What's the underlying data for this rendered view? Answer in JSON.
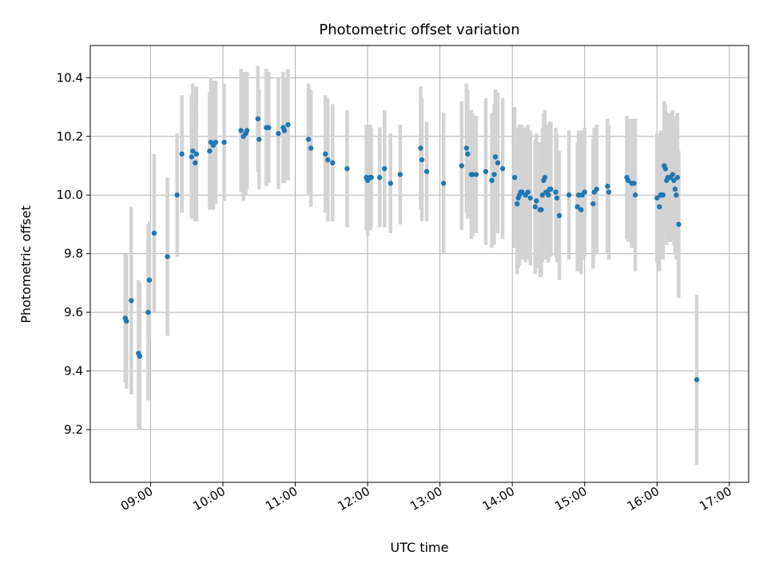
{
  "chart_data": {
    "type": "scatter",
    "title": "Photometric offset variation",
    "xlabel": "UTC time",
    "ylabel": "Photometric offset",
    "xlim": [
      "08:10",
      "17:16"
    ],
    "ylim": [
      9.02,
      10.51
    ],
    "grid": true,
    "x_ticks": [
      "09:00",
      "10:00",
      "11:00",
      "12:00",
      "13:00",
      "14:00",
      "15:00",
      "16:00",
      "17:00"
    ],
    "y_ticks": [
      9.2,
      9.4,
      9.6,
      9.8,
      10.0,
      10.2,
      10.4
    ],
    "y_tick_labels": [
      "9.2",
      "9.4",
      "9.6",
      "9.8",
      "10.0",
      "10.2",
      "10.4"
    ],
    "marker_color": "#1f77b4",
    "errorbar_color": "#d3d3d3",
    "series": [
      {
        "name": "photometric offset",
        "points": [
          {
            "t": "08:39",
            "y": 9.58,
            "err": 0.22
          },
          {
            "t": "08:40",
            "y": 9.57,
            "err": 0.23
          },
          {
            "t": "08:44",
            "y": 9.64,
            "err": 0.32
          },
          {
            "t": "08:50",
            "y": 9.46,
            "err": 0.25
          },
          {
            "t": "08:51",
            "y": 9.45,
            "err": 0.25
          },
          {
            "t": "08:58",
            "y": 9.6,
            "err": 0.3
          },
          {
            "t": "08:59",
            "y": 9.71,
            "err": 0.2
          },
          {
            "t": "09:03",
            "y": 9.87,
            "err": 0.27
          },
          {
            "t": "09:14",
            "y": 9.79,
            "err": 0.27
          },
          {
            "t": "09:22",
            "y": 10.0,
            "err": 0.21
          },
          {
            "t": "09:26",
            "y": 10.14,
            "err": 0.2
          },
          {
            "t": "09:34",
            "y": 10.13,
            "err": 0.21
          },
          {
            "t": "09:35",
            "y": 10.15,
            "err": 0.23
          },
          {
            "t": "09:37",
            "y": 10.11,
            "err": 0.2
          },
          {
            "t": "09:38",
            "y": 10.14,
            "err": 0.23
          },
          {
            "t": "09:49",
            "y": 10.15,
            "err": 0.2
          },
          {
            "t": "09:50",
            "y": 10.18,
            "err": 0.22
          },
          {
            "t": "09:52",
            "y": 10.17,
            "err": 0.22
          },
          {
            "t": "09:54",
            "y": 10.18,
            "err": 0.21
          },
          {
            "t": "10:01",
            "y": 10.18,
            "err": 0.2
          },
          {
            "t": "10:15",
            "y": 10.22,
            "err": 0.21
          },
          {
            "t": "10:17",
            "y": 10.2,
            "err": 0.22
          },
          {
            "t": "10:19",
            "y": 10.21,
            "err": 0.21
          },
          {
            "t": "10:20",
            "y": 10.22,
            "err": 0.2
          },
          {
            "t": "10:29",
            "y": 10.26,
            "err": 0.18
          },
          {
            "t": "10:30",
            "y": 10.19,
            "err": 0.17
          },
          {
            "t": "10:36",
            "y": 10.23,
            "err": 0.2
          },
          {
            "t": "10:38",
            "y": 10.23,
            "err": 0.19
          },
          {
            "t": "10:46",
            "y": 10.21,
            "err": 0.19
          },
          {
            "t": "10:50",
            "y": 10.23,
            "err": 0.19
          },
          {
            "t": "10:51",
            "y": 10.22,
            "err": 0.18
          },
          {
            "t": "10:54",
            "y": 10.24,
            "err": 0.19
          },
          {
            "t": "11:11",
            "y": 10.19,
            "err": 0.19
          },
          {
            "t": "11:13",
            "y": 10.16,
            "err": 0.2
          },
          {
            "t": "11:25",
            "y": 10.14,
            "err": 0.2
          },
          {
            "t": "11:27",
            "y": 10.12,
            "err": 0.21
          },
          {
            "t": "11:31",
            "y": 10.11,
            "err": 0.2
          },
          {
            "t": "11:43",
            "y": 10.09,
            "err": 0.2
          },
          {
            "t": "11:59",
            "y": 10.06,
            "err": 0.18
          },
          {
            "t": "12:00",
            "y": 10.05,
            "err": 0.19
          },
          {
            "t": "12:02",
            "y": 10.06,
            "err": 0.18
          },
          {
            "t": "12:03",
            "y": 10.06,
            "err": 0.17
          },
          {
            "t": "12:10",
            "y": 10.06,
            "err": 0.17
          },
          {
            "t": "12:14",
            "y": 10.09,
            "err": 0.2
          },
          {
            "t": "12:19",
            "y": 10.04,
            "err": 0.17
          },
          {
            "t": "12:27",
            "y": 10.07,
            "err": 0.17
          },
          {
            "t": "12:44",
            "y": 10.16,
            "err": 0.21
          },
          {
            "t": "12:45",
            "y": 10.12,
            "err": 0.21
          },
          {
            "t": "12:49",
            "y": 10.08,
            "err": 0.17
          },
          {
            "t": "13:03",
            "y": 10.04,
            "err": 0.24
          },
          {
            "t": "13:18",
            "y": 10.1,
            "err": 0.22
          },
          {
            "t": "13:22",
            "y": 10.16,
            "err": 0.22
          },
          {
            "t": "13:23",
            "y": 10.14,
            "err": 0.22
          },
          {
            "t": "13:26",
            "y": 10.07,
            "err": 0.22
          },
          {
            "t": "13:27",
            "y": 10.07,
            "err": 0.21
          },
          {
            "t": "13:30",
            "y": 10.07,
            "err": 0.2
          },
          {
            "t": "13:38",
            "y": 10.08,
            "err": 0.25
          },
          {
            "t": "13:43",
            "y": 10.05,
            "err": 0.23
          },
          {
            "t": "13:45",
            "y": 10.07,
            "err": 0.24
          },
          {
            "t": "13:46",
            "y": 10.13,
            "err": 0.23
          },
          {
            "t": "13:48",
            "y": 10.11,
            "err": 0.24
          },
          {
            "t": "13:52",
            "y": 10.09,
            "err": 0.24
          },
          {
            "t": "14:02",
            "y": 10.06,
            "err": 0.24
          },
          {
            "t": "14:04",
            "y": 9.97,
            "err": 0.24
          },
          {
            "t": "14:05",
            "y": 9.99,
            "err": 0.24
          },
          {
            "t": "14:06",
            "y": 10.0,
            "err": 0.24
          },
          {
            "t": "14:07",
            "y": 10.01,
            "err": 0.23
          },
          {
            "t": "14:08",
            "y": 10.01,
            "err": 0.23
          },
          {
            "t": "14:11",
            "y": 10.0,
            "err": 0.23
          },
          {
            "t": "14:13",
            "y": 10.01,
            "err": 0.23
          },
          {
            "t": "14:15",
            "y": 9.99,
            "err": 0.23
          },
          {
            "t": "14:19",
            "y": 9.96,
            "err": 0.23
          },
          {
            "t": "14:20",
            "y": 9.98,
            "err": 0.23
          },
          {
            "t": "14:23",
            "y": 9.95,
            "err": 0.23
          },
          {
            "t": "14:24",
            "y": 9.95,
            "err": 0.23
          },
          {
            "t": "14:25",
            "y": 10.0,
            "err": 0.23
          },
          {
            "t": "14:26",
            "y": 10.05,
            "err": 0.23
          },
          {
            "t": "14:27",
            "y": 10.06,
            "err": 0.23
          },
          {
            "t": "14:28",
            "y": 10.01,
            "err": 0.23
          },
          {
            "t": "14:29",
            "y": 10.01,
            "err": 0.23
          },
          {
            "t": "14:30",
            "y": 10.0,
            "err": 0.23
          },
          {
            "t": "14:31",
            "y": 10.02,
            "err": 0.23
          },
          {
            "t": "14:32",
            "y": 10.02,
            "err": 0.23
          },
          {
            "t": "14:36",
            "y": 10.01,
            "err": 0.22
          },
          {
            "t": "14:37",
            "y": 9.99,
            "err": 0.22
          },
          {
            "t": "14:39",
            "y": 9.93,
            "err": 0.22
          },
          {
            "t": "14:47",
            "y": 10.0,
            "err": 0.22
          },
          {
            "t": "14:54",
            "y": 9.96,
            "err": 0.22
          },
          {
            "t": "14:55",
            "y": 10.0,
            "err": 0.22
          },
          {
            "t": "14:57",
            "y": 9.95,
            "err": 0.22
          },
          {
            "t": "14:58",
            "y": 10.0,
            "err": 0.22
          },
          {
            "t": "15:00",
            "y": 10.01,
            "err": 0.22
          },
          {
            "t": "15:07",
            "y": 9.97,
            "err": 0.22
          },
          {
            "t": "15:08",
            "y": 10.01,
            "err": 0.22
          },
          {
            "t": "15:10",
            "y": 10.02,
            "err": 0.22
          },
          {
            "t": "15:19",
            "y": 10.03,
            "err": 0.23
          },
          {
            "t": "15:20",
            "y": 10.01,
            "err": 0.23
          },
          {
            "t": "15:35",
            "y": 10.06,
            "err": 0.21
          },
          {
            "t": "15:36",
            "y": 10.05,
            "err": 0.21
          },
          {
            "t": "15:39",
            "y": 10.04,
            "err": 0.22
          },
          {
            "t": "15:41",
            "y": 10.04,
            "err": 0.22
          },
          {
            "t": "15:42",
            "y": 10.0,
            "err": 0.26
          },
          {
            "t": "16:00",
            "y": 9.99,
            "err": 0.22
          },
          {
            "t": "16:02",
            "y": 9.96,
            "err": 0.22
          },
          {
            "t": "16:03",
            "y": 10.0,
            "err": 0.22
          },
          {
            "t": "16:04",
            "y": 10.0,
            "err": 0.22
          },
          {
            "t": "16:05",
            "y": 10.0,
            "err": 0.22
          },
          {
            "t": "16:06",
            "y": 10.1,
            "err": 0.22
          },
          {
            "t": "16:07",
            "y": 10.09,
            "err": 0.22
          },
          {
            "t": "16:08",
            "y": 10.05,
            "err": 0.22
          },
          {
            "t": "16:09",
            "y": 10.06,
            "err": 0.22
          },
          {
            "t": "16:11",
            "y": 10.06,
            "err": 0.22
          },
          {
            "t": "16:13",
            "y": 10.07,
            "err": 0.22
          },
          {
            "t": "16:14",
            "y": 10.05,
            "err": 0.22
          },
          {
            "t": "16:15",
            "y": 10.02,
            "err": 0.22
          },
          {
            "t": "16:16",
            "y": 10.0,
            "err": 0.22
          },
          {
            "t": "16:17",
            "y": 10.06,
            "err": 0.22
          },
          {
            "t": "16:18",
            "y": 9.9,
            "err": 0.25
          },
          {
            "t": "16:33",
            "y": 9.37,
            "err": 0.29
          }
        ]
      }
    ]
  }
}
